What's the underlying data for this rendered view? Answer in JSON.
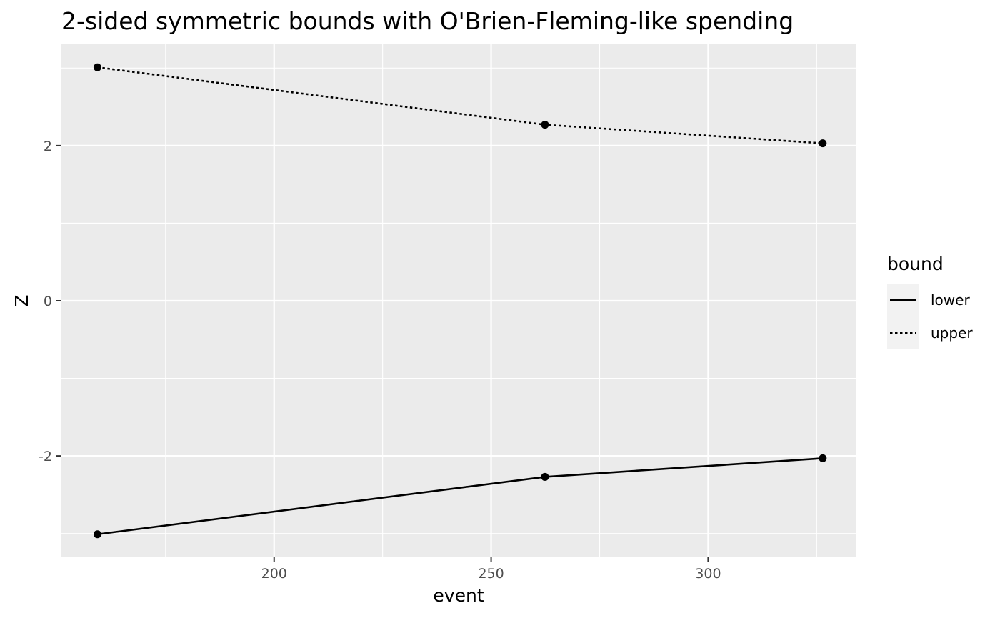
{
  "chart_data": {
    "type": "line",
    "title": "2-sided symmetric bounds with O'Brien-Fleming-like spending",
    "xlabel": "event",
    "ylabel": "Z",
    "xlim": [
      151,
      334
    ],
    "ylim": [
      -3.307,
      3.307
    ],
    "x_ticks": [
      200,
      250,
      300
    ],
    "x_tick_labels": [
      "200",
      "250",
      "300"
    ],
    "y_ticks": [
      -2,
      0,
      2
    ],
    "y_tick_labels": [
      "-2",
      "0",
      "2"
    ],
    "grid": true,
    "background": "#ebebeb",
    "gridline_color": "#ffffff",
    "legend": {
      "title": "bound",
      "position": "right",
      "entries": [
        {
          "label": "lower",
          "linetype": "solid"
        },
        {
          "label": "upper",
          "linetype": "dotted"
        }
      ]
    },
    "series": [
      {
        "name": "lower",
        "linetype": "solid",
        "color": "#000000",
        "x": [
          159.3,
          262.4,
          326.4
        ],
        "y": [
          -3.01,
          -2.27,
          -2.03
        ]
      },
      {
        "name": "upper",
        "linetype": "dotted",
        "color": "#000000",
        "x": [
          159.3,
          262.4,
          326.4
        ],
        "y": [
          3.01,
          2.27,
          2.03
        ]
      }
    ]
  }
}
